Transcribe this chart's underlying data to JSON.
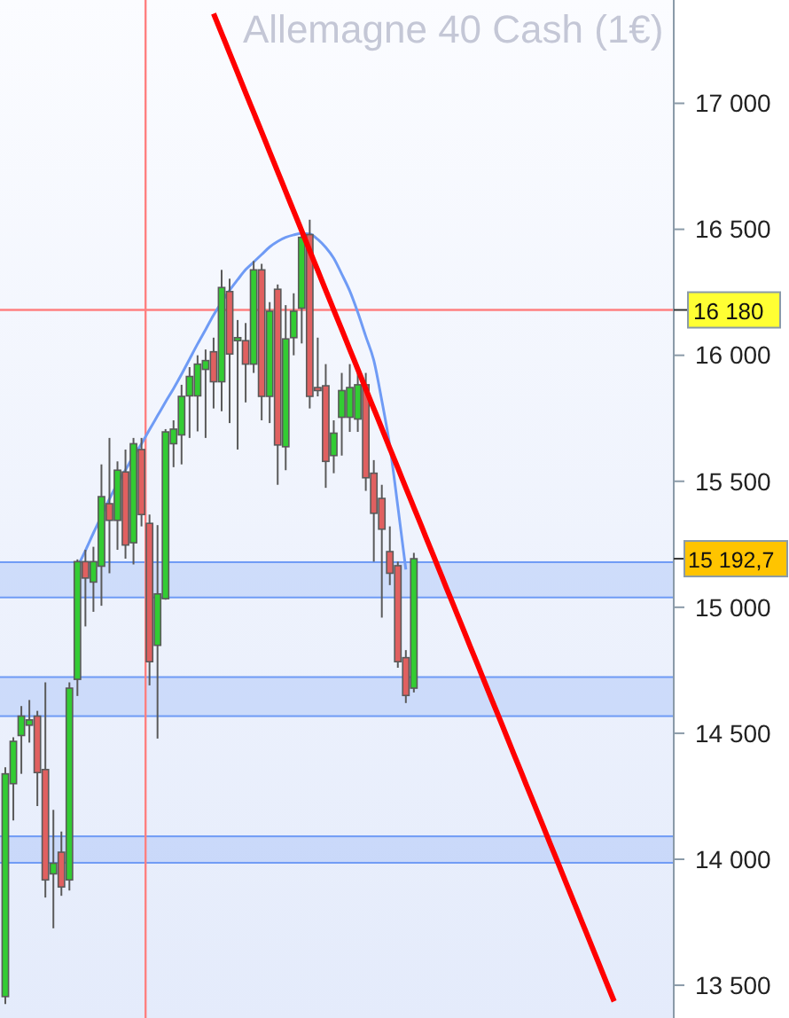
{
  "chart_data": {
    "type": "candlestick",
    "title": "Allemagne 40 Cash (1€)",
    "categories": [
      null,
      null,
      null,
      null,
      null,
      null,
      null,
      null,
      null,
      null,
      null,
      null,
      null,
      null,
      null,
      null,
      null,
      null,
      null,
      null,
      null,
      null,
      null,
      null,
      null,
      null,
      null,
      null,
      null,
      null,
      null,
      null,
      null,
      null,
      null,
      null,
      null,
      null,
      null,
      null,
      null,
      null,
      null,
      null,
      null,
      null,
      null,
      null,
      null,
      null,
      null,
      null,
      null,
      null,
      null,
      null,
      null,
      null,
      null,
      null,
      null,
      null,
      null,
      null,
      null,
      null,
      null,
      null,
      null,
      null,
      null,
      null,
      null,
      null,
      null,
      null,
      null,
      null,
      null,
      null,
      null,
      null,
      null,
      null
    ],
    "ohlc": [
      [
        13455,
        14365,
        13425,
        14339
      ],
      [
        14300,
        14484,
        14154,
        14468
      ],
      [
        14491,
        14608,
        14339,
        14568
      ],
      [
        14532,
        14632,
        14463,
        14553
      ],
      [
        14568,
        14589,
        14211,
        14344
      ],
      [
        14356,
        14702,
        13848,
        13918
      ],
      [
        13942,
        14196,
        13726,
        13984
      ],
      [
        14028,
        14110,
        13855,
        13890
      ],
      [
        13918,
        14702,
        13876,
        14679
      ],
      [
        14714,
        15190,
        14648,
        15181
      ],
      [
        15181,
        15228,
        14924,
        15116
      ],
      [
        15100,
        15240,
        14982,
        15181
      ],
      [
        15163,
        15567,
        15006,
        15439
      ],
      [
        15411,
        15672,
        15135,
        15345
      ],
      [
        15345,
        15579,
        15228,
        15544
      ],
      [
        15537,
        15626,
        15193,
        15247
      ],
      [
        15256,
        15672,
        15170,
        15649
      ],
      [
        15626,
        15672,
        15321,
        15368
      ],
      [
        15333,
        15368,
        14690,
        14784
      ],
      [
        14849,
        15326,
        14479,
        15053
      ],
      [
        15034,
        15707,
        15030,
        15696
      ],
      [
        15649,
        15742,
        15556,
        15707
      ],
      [
        15684,
        15883,
        15567,
        15837
      ],
      [
        15839,
        15953,
        15672,
        15916
      ],
      [
        15839,
        16000,
        15698,
        15965
      ],
      [
        15944,
        16023,
        15672,
        15979
      ],
      [
        16014,
        16070,
        15789,
        15895
      ],
      [
        15895,
        16339,
        15778,
        16269
      ],
      [
        16253,
        16304,
        15731,
        16005
      ],
      [
        16058,
        16140,
        15626,
        16070
      ],
      [
        16058,
        16128,
        15813,
        15965
      ],
      [
        15965,
        16374,
        15930,
        16339
      ],
      [
        16339,
        16363,
        15742,
        15837
      ],
      [
        15837,
        16211,
        15731,
        16175
      ],
      [
        16262,
        16281,
        15486,
        15644
      ],
      [
        15637,
        16199,
        15544,
        16065
      ],
      [
        16070,
        16246,
        16000,
        16175
      ],
      [
        16187,
        16491,
        16047,
        16468
      ],
      [
        16479,
        16538,
        15789,
        15837
      ],
      [
        15872,
        16070,
        15837,
        15860
      ],
      [
        15879,
        15965,
        15474,
        15579
      ],
      [
        15602,
        15742,
        15532,
        15691
      ],
      [
        15754,
        15930,
        15602,
        15860
      ],
      [
        15754,
        15965,
        15696,
        15872
      ],
      [
        15747,
        15930,
        15696,
        15883
      ],
      [
        15883,
        15930,
        15462,
        15514
      ],
      [
        15532,
        15584,
        15181,
        15373
      ],
      [
        15432,
        15486,
        14959,
        15310
      ],
      [
        15221,
        15321,
        15088,
        15135
      ],
      [
        15165,
        15181,
        14760,
        14784
      ],
      [
        14800,
        14830,
        14620,
        14650
      ],
      [
        14679,
        15216,
        14662,
        15192.7
      ],
      null,
      null,
      null,
      null,
      null,
      null,
      null,
      null,
      null,
      null,
      null,
      null,
      null,
      null,
      null,
      null,
      null,
      null,
      null,
      null,
      null,
      null,
      null,
      null,
      null,
      null,
      null,
      null,
      null,
      null,
      null,
      null
    ],
    "series": [
      {
        "type": "line",
        "color": "#6f9bf5",
        "values": [
          null,
          null,
          null,
          null,
          null,
          null,
          null,
          null,
          null,
          15160,
          15225,
          15295,
          15362,
          15430,
          15490,
          15545,
          15600,
          15649,
          15705,
          15760,
          15815,
          15868,
          15925,
          15985,
          16045,
          16102,
          16160,
          16210,
          16258,
          16300,
          16340,
          16370,
          16400,
          16430,
          16452,
          16468,
          16478,
          16484,
          16482,
          16460,
          16428,
          16385,
          16322,
          16255,
          16170,
          16075,
          15980,
          15820,
          15640,
          15400,
          15150,
          null,
          null,
          null,
          null,
          null,
          null,
          null,
          null,
          null,
          null,
          null,
          null,
          null,
          null,
          null,
          null,
          null,
          null,
          null,
          null,
          null,
          null,
          null,
          null,
          null,
          null,
          null,
          null,
          null,
          null,
          null,
          null,
          null
        ]
      },
      {
        "type": "line",
        "color": "#ff0000",
        "values": [
          null,
          null,
          null,
          null,
          null,
          null,
          null,
          null,
          null,
          null,
          null,
          null,
          null,
          null,
          null,
          null,
          null,
          null,
          null,
          null,
          null,
          null,
          null,
          null,
          null,
          null,
          17356,
          17278,
          17199,
          17121,
          17042,
          16964,
          16886,
          16807,
          16729,
          16650,
          16572,
          16494,
          16415,
          16337,
          16258,
          16180,
          16102,
          16023,
          15945,
          15866,
          15788,
          15710,
          15631,
          15553,
          15474,
          15396,
          15318,
          15239,
          15161,
          15082,
          15004,
          14926,
          14847,
          14769,
          14690,
          14612,
          14534,
          14455,
          14377,
          14298,
          14220,
          14142,
          14063,
          13985,
          13906,
          13828,
          13750,
          13671,
          13593,
          13514,
          13436,
          null,
          null,
          null,
          null,
          null,
          null,
          null
        ]
      }
    ],
    "ylim": [
      13370,
      17410
    ],
    "yticks": [
      {
        "value": 13500,
        "label": "13 500"
      },
      {
        "value": 14000,
        "label": "14 000"
      },
      {
        "value": 14500,
        "label": "14 500"
      },
      {
        "value": 15000,
        "label": "15 000"
      },
      {
        "value": 15500,
        "label": "15 500"
      },
      {
        "value": 16000,
        "label": "16 000"
      },
      {
        "value": 16500,
        "label": "16 500"
      },
      {
        "value": 17000,
        "label": "17 000"
      }
    ],
    "tick_labels": "y",
    "ref_lines": [
      {
        "axis": "y",
        "value": 16180,
        "label": "16 180",
        "color": "#ff8080"
      }
    ],
    "bands": [
      {
        "axis": "y",
        "from": 15039,
        "to": 15179,
        "color": "#6f9bf5"
      },
      {
        "axis": "y",
        "from": 14568,
        "to": 14723,
        "color": "#6f9bf5"
      },
      {
        "axis": "y",
        "from": 13986,
        "to": 14091,
        "color": "#6f9bf5"
      }
    ],
    "annotations": [
      "15 192,7"
    ]
  }
}
